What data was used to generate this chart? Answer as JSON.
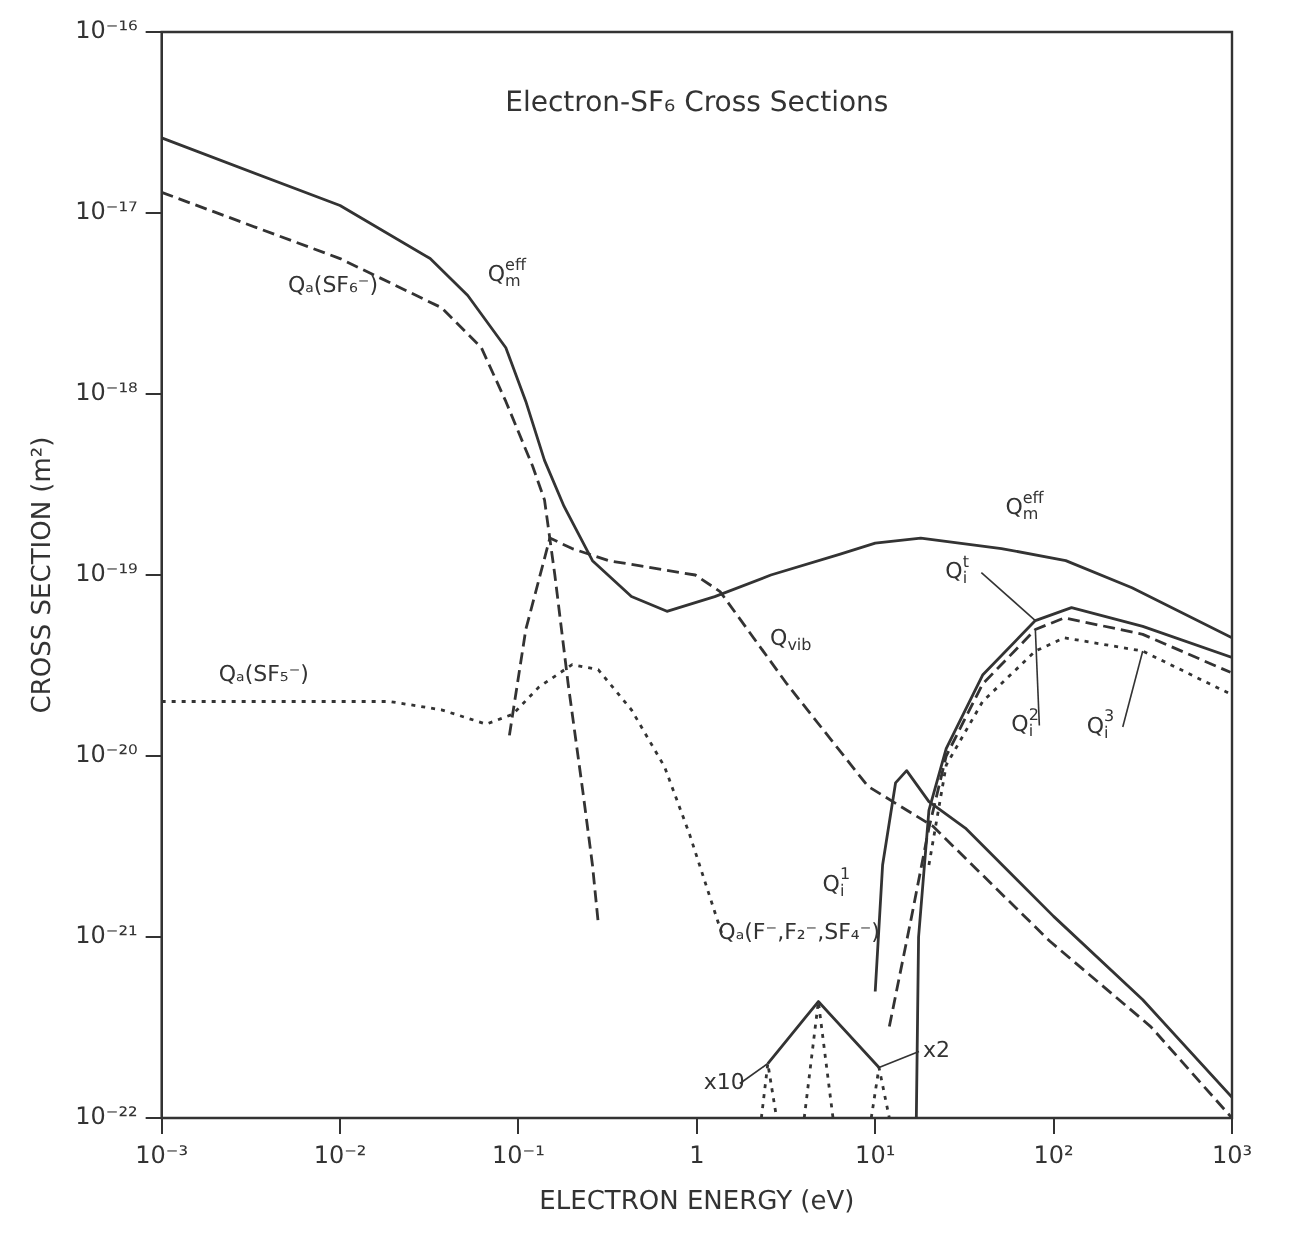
{
  "chart_data": {
    "type": "line",
    "title": "Electron-SF₆ Cross Sections",
    "xlabel": "ELECTRON ENERGY (eV)",
    "ylabel": "CROSS SECTION (m²)",
    "log": "xy",
    "xlim": [
      0.001,
      1000
    ],
    "ylim": [
      1e-22,
      1e-16
    ],
    "xticks": [
      {
        "value": 0.001,
        "label": "10⁻³"
      },
      {
        "value": 0.01,
        "label": "10⁻²"
      },
      {
        "value": 0.1,
        "label": "10⁻¹"
      },
      {
        "value": 1,
        "label": "1"
      },
      {
        "value": 10,
        "label": "10¹"
      },
      {
        "value": 100,
        "label": "10²"
      },
      {
        "value": 1000,
        "label": "10³"
      }
    ],
    "yticks": [
      {
        "value": 1e-22,
        "label": "10⁻²²"
      },
      {
        "value": 1e-21,
        "label": "10⁻²¹"
      },
      {
        "value": 1e-20,
        "label": "10⁻²⁰"
      },
      {
        "value": 1e-19,
        "label": "10⁻¹⁹"
      },
      {
        "value": 1e-18,
        "label": "10⁻¹⁸"
      },
      {
        "value": 1e-17,
        "label": "10⁻¹⁷"
      },
      {
        "value": 1e-16,
        "label": "10⁻¹⁶"
      }
    ],
    "series": [
      {
        "color": "#333333",
        "line_style": "solid",
        "x": [
          0.001,
          0.01,
          0.032,
          0.052,
          0.085,
          0.11,
          0.14,
          0.18,
          0.26,
          0.43,
          0.68,
          1.26,
          2.6,
          6.3,
          10,
          18,
          51,
          117,
          275,
          1000
        ],
        "values": [
          2.6e-17,
          1.1e-17,
          5.6e-18,
          3.5e-18,
          1.8e-18,
          9.1e-19,
          4.3e-19,
          2.4e-19,
          1.2e-19,
          7.6e-20,
          6.3e-20,
          7.6e-20,
          1e-19,
          1.3e-19,
          1.5e-19,
          1.6e-19,
          1.4e-19,
          1.2e-19,
          8.5e-20,
          4.5e-20
        ]
      },
      {
        "color": "#333333",
        "line_style": "dashed",
        "x": [
          0.001,
          0.01,
          0.037,
          0.062,
          0.085,
          0.12,
          0.14,
          0.16,
          0.19,
          0.23,
          0.26,
          0.28
        ],
        "values": [
          1.3e-17,
          5.6e-18,
          3e-18,
          1.8e-18,
          9.1e-19,
          4e-19,
          2.6e-19,
          1e-19,
          2.5e-20,
          6.3e-21,
          2.5e-21,
          1.2e-21
        ]
      },
      {
        "color": "#333333",
        "line_style": "dashed",
        "x": [
          0.089,
          0.11,
          0.15,
          0.2,
          0.32,
          0.98,
          1.35,
          3.2,
          9.1,
          21,
          95,
          350,
          1000
        ],
        "values": [
          1.3e-20,
          5e-20,
          1.6e-19,
          1.4e-19,
          1.2e-19,
          1e-19,
          8.1e-20,
          2.5e-20,
          6.8e-21,
          4.1e-21,
          9.5e-22,
          3.2e-22,
          1e-22
        ]
      },
      {
        "color": "#333333",
        "line_style": "dotted",
        "x": [
          0.001,
          0.019,
          0.037,
          0.066,
          0.093,
          0.13,
          0.2,
          0.28,
          0.43,
          0.66,
          0.91,
          1.4
        ],
        "values": [
          2e-20,
          2e-20,
          1.8e-20,
          1.5e-20,
          1.7e-20,
          2.4e-20,
          3.2e-20,
          3e-20,
          1.8e-20,
          8.7e-21,
          3.7e-21,
          1e-21
        ]
      },
      {
        "color": "#333333",
        "line_style": "solid",
        "x": [
          17,
          17.5,
          20,
          25,
          40,
          79,
          126,
          316,
          1000
        ],
        "values": [
          1e-22,
          1e-21,
          5e-21,
          1.1e-20,
          2.8e-20,
          5.6e-20,
          6.6e-20,
          5.2e-20,
          3.5e-20
        ]
      },
      {
        "color": "#333333",
        "line_style": "dashed",
        "x": [
          12,
          16,
          20,
          25,
          40,
          79,
          115,
          316,
          980
        ],
        "values": [
          3.2e-22,
          1.3e-21,
          4e-21,
          1e-20,
          2.5e-20,
          5e-20,
          5.8e-20,
          4.7e-20,
          2.9e-20
        ]
      },
      {
        "color": "#333333",
        "line_style": "dotted",
        "x": [
          20,
          25,
          40,
          79,
          115,
          316,
          980
        ],
        "values": [
          2.5e-21,
          8.9e-21,
          2e-20,
          3.8e-20,
          4.5e-20,
          3.8e-20,
          2.2e-20
        ]
      },
      {
        "color": "#333333",
        "line_style": "solid",
        "x": [
          10,
          11,
          13,
          15,
          20,
          32,
          100,
          316,
          1000
        ],
        "values": [
          5e-22,
          2.5e-21,
          7.1e-21,
          8.3e-21,
          5.6e-21,
          4e-21,
          1.3e-21,
          4.5e-22,
          1.3e-22
        ]
      },
      {
        "color": "#333333",
        "line_style": "solid",
        "x": [
          2.5,
          4.8,
          10.5
        ],
        "values": [
          2e-22,
          4.4e-22,
          1.9e-22
        ]
      },
      {
        "color": "#333333",
        "line_style": "dotted",
        "x": [
          2.3,
          2.5,
          2.8,
          3.2,
          4.0,
          4.8,
          5.8,
          8,
          9.5,
          10.5,
          12
        ],
        "values": [
          1e-22,
          2e-22,
          1e-22,
          null,
          1e-22,
          4.4e-22,
          1e-22,
          null,
          1e-22,
          1.9e-22,
          1e-22
        ]
      }
    ],
    "annotations": [
      {
        "text": "Q$_{m}$$^{eff}$",
        "x": 0.052,
        "y": 3.5e-18
      },
      {
        "text": "Qₐ(SF₆⁻)",
        "x": 0.009,
        "y": 5.9e-18
      },
      {
        "text": "Q$_{m}$$^{eff}$",
        "x": 51,
        "y": 1.4e-19
      },
      {
        "text": "Q$_{i}$$^{t}$",
        "x": 79,
        "y": 5.6e-20
      },
      {
        "text": "Q$_{vib}$",
        "x": 1.35,
        "y": 8.1e-20
      },
      {
        "text": "Qₐ(SF₅⁻)",
        "x": 0.0035,
        "y": 2e-20
      },
      {
        "text": "Q$_{i}$$^{1}$",
        "x": 11,
        "y": 2.5e-21
      },
      {
        "text": "Q$_{i}$$^{2}$",
        "x": 79,
        "y": 5e-20
      },
      {
        "text": "Q$_{i}$$^{3}$",
        "x": 316,
        "y": 3.8e-20
      },
      {
        "text": "Qₐ(F⁻,F₂⁻,SF₄⁻)",
        "x": 4.8,
        "y": 4.4e-22
      },
      {
        "text": "x10",
        "x": 2.5,
        "y": 2e-22
      },
      {
        "text": "x2",
        "x": 10.5,
        "y": 1.9e-22
      }
    ]
  }
}
